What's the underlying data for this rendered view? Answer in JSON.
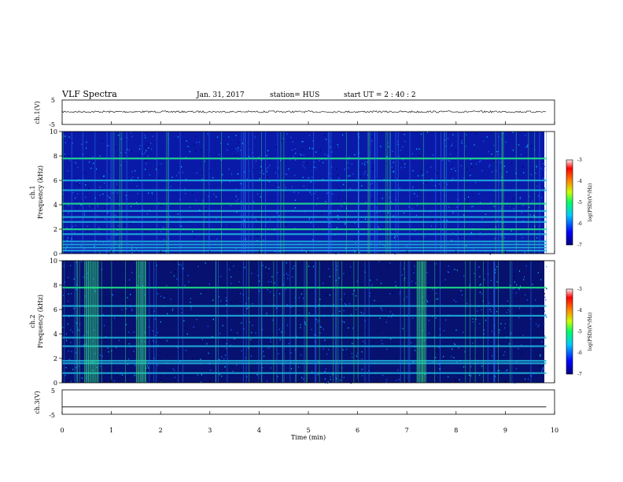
{
  "header": {
    "title": "VLF Spectra",
    "date": "Jan. 31, 2017",
    "station": "station= HUS",
    "start": "start  UT =  2 : 40 : 2"
  },
  "chart_data": [
    {
      "type": "line",
      "title": "",
      "ylabel": "ch.1(V)",
      "ylim": [
        -5,
        5
      ],
      "yticks": [
        "5",
        "-5"
      ],
      "xlim": [
        0,
        10
      ],
      "series": [
        {
          "values_note_level": 0.2
        }
      ]
    },
    {
      "type": "heatmap",
      "ylabel_line1": "ch.1",
      "ylabel_line2": "Frequency (kHz)",
      "ylim": [
        0,
        10
      ],
      "yticks": [
        "0",
        "2",
        "4",
        "6",
        "8",
        "10"
      ],
      "xlim": [
        0,
        9.83
      ],
      "data_end_min": 9.83,
      "bands_khz": [
        0.25,
        0.5,
        0.75,
        1.0,
        1.6,
        2.0,
        2.6,
        3.0,
        3.5,
        4.1,
        5.2,
        6.0,
        7.8
      ],
      "colorbar": {
        "label": "log(PSD)(V²/Hz)",
        "range": [
          -7,
          -3
        ],
        "ticks": [
          "-3",
          "-4",
          "-5",
          "-6",
          "-7"
        ]
      }
    },
    {
      "type": "heatmap",
      "ylabel_line1": "ch.2",
      "ylabel_line2": "Frequency (kHz)",
      "ylim": [
        0,
        10
      ],
      "yticks": [
        "0",
        "2",
        "4",
        "6",
        "8",
        "10"
      ],
      "xlim": [
        0,
        9.83
      ],
      "data_end_min": 9.83,
      "bands_khz": [
        0.8,
        1.6,
        1.8,
        3.0,
        3.7,
        5.5,
        6.3,
        7.8
      ],
      "bursts_min": [
        0.45,
        0.55,
        0.65,
        1.5,
        1.6,
        7.2,
        7.3
      ],
      "colorbar": {
        "label": "log(PSD)(V²/Hz)",
        "range": [
          -7,
          -3
        ],
        "ticks": [
          "-3",
          "-4",
          "-5",
          "-6",
          "-7"
        ]
      }
    },
    {
      "type": "line",
      "ylabel": "ch.3(V)",
      "ylim": [
        -5,
        5
      ],
      "yticks": [
        "5",
        "-5"
      ],
      "xlim": [
        0,
        10
      ],
      "xlabel": "Time (min)",
      "xticks": [
        "0",
        "1",
        "2",
        "3",
        "4",
        "5",
        "6",
        "7",
        "8",
        "9",
        "10"
      ],
      "series": [
        {
          "values": [
            -2,
            -2
          ]
        }
      ]
    }
  ]
}
